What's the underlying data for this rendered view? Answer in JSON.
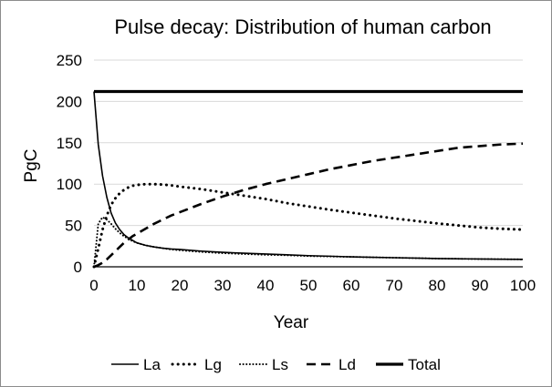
{
  "chart_data": {
    "type": "line",
    "title": "Pulse decay: Distribution of human carbon",
    "xlabel": "Year",
    "ylabel": "PgC",
    "xlim": [
      0,
      100
    ],
    "ylim": [
      0,
      250
    ],
    "xticks": [
      0,
      10,
      20,
      30,
      40,
      50,
      60,
      70,
      80,
      90,
      100
    ],
    "yticks": [
      0,
      50,
      100,
      150,
      200,
      250
    ],
    "grid": "horizontal",
    "legend": "bottom",
    "x": [
      0,
      1,
      2,
      3,
      4,
      5,
      6,
      7,
      8,
      9,
      10,
      12,
      14,
      16,
      18,
      20,
      25,
      30,
      35,
      40,
      45,
      50,
      55,
      60,
      65,
      70,
      75,
      80,
      85,
      90,
      95,
      100
    ],
    "series": [
      {
        "name": "La",
        "style": "solid",
        "values": [
          212,
          148,
          110,
          84,
          65,
          53,
          45,
          39,
          35,
          32,
          29,
          26,
          24,
          22.5,
          21.5,
          21,
          19,
          17.5,
          16.5,
          15.5,
          14.5,
          13.5,
          12.8,
          12,
          11.5,
          11,
          10.5,
          10,
          9.7,
          9.4,
          9.2,
          9
        ]
      },
      {
        "name": "Lg",
        "style": "dotted",
        "values": [
          0,
          22,
          45,
          62,
          75,
          83,
          89,
          93,
          96,
          98,
          99,
          100,
          100,
          99.5,
          98.5,
          97,
          94,
          90,
          86,
          82,
          77,
          73,
          69,
          65.5,
          62,
          58.5,
          55.5,
          52.5,
          50,
          47.5,
          46,
          45
        ]
      },
      {
        "name": "Ls",
        "style": "fine-dotted",
        "values": [
          0,
          52,
          60,
          57,
          52,
          46,
          41,
          37,
          34,
          31,
          29,
          26,
          24,
          22.5,
          21,
          20,
          18,
          16.5,
          15.5,
          14.5,
          14,
          13,
          12.5,
          12,
          11.5,
          11,
          10.5,
          10,
          9.7,
          9.4,
          9.2,
          9
        ]
      },
      {
        "name": "Ld",
        "style": "dashed",
        "values": [
          0,
          2,
          5,
          9,
          14,
          19,
          24,
          29,
          33,
          37,
          40,
          46,
          52,
          57,
          62,
          66,
          76,
          85,
          93,
          100,
          106,
          112,
          118,
          123,
          128,
          132,
          136,
          140,
          144,
          146,
          148,
          149
        ]
      },
      {
        "name": "Total",
        "style": "thick-solid",
        "values": [
          212,
          212,
          212,
          212,
          212,
          212,
          212,
          212,
          212,
          212,
          212,
          212,
          212,
          212,
          212,
          212,
          212,
          212,
          212,
          212,
          212,
          212,
          212,
          212,
          212,
          212,
          212,
          212,
          212,
          212,
          212,
          212
        ]
      }
    ]
  }
}
